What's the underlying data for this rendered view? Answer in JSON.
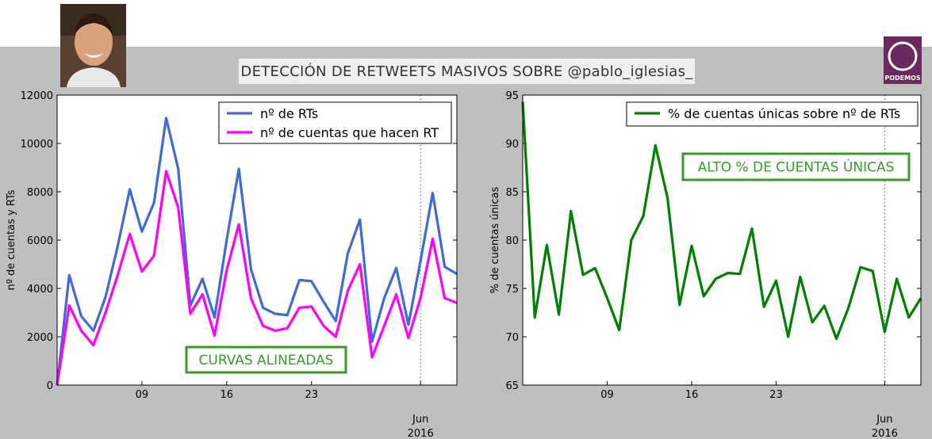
{
  "header": {
    "title": "DETECCIÓN DE RETWEETS MASIVOS SOBRE @pablo_iglesias_",
    "logo_text": "PODEMOS"
  },
  "colors": {
    "background": "#bfbfbf",
    "blue": "#4169d8",
    "magenta": "#ff00ff",
    "green": "#008000",
    "annotation": "#3a9a2a",
    "logo": "#6b2a5e"
  },
  "chart_data": [
    {
      "type": "line",
      "ylabel": "nº de cuentas y RTs",
      "ylim": [
        0,
        12000
      ],
      "yticks": [
        0,
        2000,
        4000,
        6000,
        8000,
        10000,
        12000
      ],
      "xlim": [
        "2016-05-02",
        "2016-06-04"
      ],
      "xticks": [
        "09",
        "16",
        "23"
      ],
      "xticks_dates": [
        "2016-05-09",
        "2016-05-16",
        "2016-05-23"
      ],
      "month_tick": {
        "label": "Jun",
        "year": "2016",
        "date": "2016-06-01"
      },
      "grid": "dotted",
      "legend": "top-right",
      "annotation": "CURVAS ALINEADAS",
      "x": [
        "2016-05-02",
        "2016-05-03",
        "2016-05-04",
        "2016-05-05",
        "2016-05-06",
        "2016-05-07",
        "2016-05-08",
        "2016-05-09",
        "2016-05-10",
        "2016-05-11",
        "2016-05-12",
        "2016-05-13",
        "2016-05-14",
        "2016-05-15",
        "2016-05-16",
        "2016-05-17",
        "2016-05-18",
        "2016-05-19",
        "2016-05-20",
        "2016-05-21",
        "2016-05-22",
        "2016-05-23",
        "2016-05-24",
        "2016-05-25",
        "2016-05-26",
        "2016-05-27",
        "2016-05-28",
        "2016-05-29",
        "2016-05-30",
        "2016-05-31",
        "2016-06-01",
        "2016-06-02",
        "2016-06-03",
        "2016-06-04"
      ],
      "series": [
        {
          "name": "nº de RTs",
          "color": "#4169d8",
          "values": [
            0,
            4550,
            2850,
            2250,
            3650,
            5750,
            8100,
            6350,
            7550,
            11050,
            8950,
            3300,
            4400,
            2800,
            6000,
            8950,
            4800,
            3200,
            2950,
            2900,
            4350,
            4300,
            3450,
            2650,
            5450,
            6850,
            1800,
            3600,
            4850,
            2500,
            5150,
            7950,
            4900,
            4600
          ]
        },
        {
          "name": "nº de cuentas que hacen RT",
          "color": "#ff00ff",
          "values": [
            0,
            3300,
            2250,
            1650,
            3000,
            4550,
            6250,
            4700,
            5350,
            8850,
            7350,
            2950,
            3750,
            2050,
            4750,
            6650,
            3600,
            2450,
            2250,
            2350,
            3200,
            3250,
            2450,
            2000,
            3900,
            5000,
            1150,
            2450,
            3750,
            1950,
            3600,
            6050,
            3600,
            3400
          ]
        }
      ]
    },
    {
      "type": "line",
      "ylabel": "% de cuentas únicas",
      "ylim": [
        65,
        95
      ],
      "yticks": [
        65,
        70,
        75,
        80,
        85,
        90,
        95
      ],
      "xlim": [
        "2016-05-02",
        "2016-06-04"
      ],
      "xticks": [
        "09",
        "16",
        "23"
      ],
      "xticks_dates": [
        "2016-05-09",
        "2016-05-16",
        "2016-05-23"
      ],
      "month_tick": {
        "label": "Jun",
        "year": "2016",
        "date": "2016-06-01"
      },
      "grid": "dotted",
      "legend": "top-right",
      "annotation": "ALTO % DE CUENTAS ÚNICAS",
      "x": [
        "2016-05-02",
        "2016-05-03",
        "2016-05-04",
        "2016-05-05",
        "2016-05-06",
        "2016-05-07",
        "2016-05-08",
        "2016-05-09",
        "2016-05-10",
        "2016-05-11",
        "2016-05-12",
        "2016-05-13",
        "2016-05-14",
        "2016-05-15",
        "2016-05-16",
        "2016-05-17",
        "2016-05-18",
        "2016-05-19",
        "2016-05-20",
        "2016-05-21",
        "2016-05-22",
        "2016-05-23",
        "2016-05-24",
        "2016-05-25",
        "2016-05-26",
        "2016-05-27",
        "2016-05-28",
        "2016-05-29",
        "2016-05-30",
        "2016-05-31",
        "2016-06-01",
        "2016-06-02",
        "2016-06-03",
        "2016-06-04"
      ],
      "series": [
        {
          "name": "% de cuentas únicas sobre nº de RTs",
          "color": "#008000",
          "values": [
            94.3,
            72.0,
            79.5,
            72.3,
            83.0,
            76.4,
            77.1,
            74.0,
            70.7,
            80.0,
            82.5,
            89.8,
            84.4,
            73.3,
            79.4,
            74.2,
            76.0,
            76.6,
            76.5,
            81.2,
            73.1,
            75.8,
            70.0,
            76.2,
            71.5,
            73.2,
            69.8,
            73.0,
            77.2,
            76.8,
            70.5,
            76.0,
            72.0,
            74.0
          ]
        }
      ]
    }
  ]
}
